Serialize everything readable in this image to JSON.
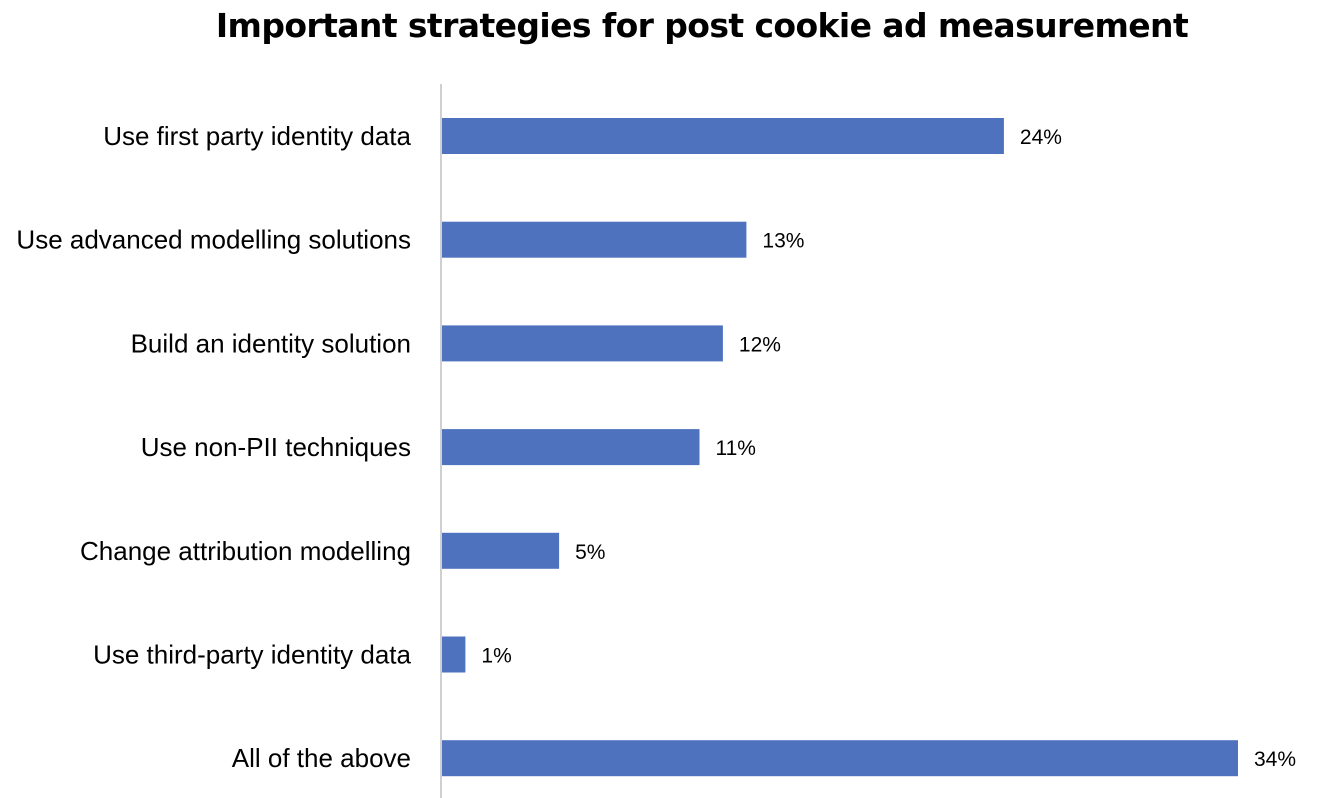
{
  "chart_data": {
    "type": "bar",
    "orientation": "horizontal",
    "title": "Important strategies for post cookie ad measurement",
    "categories": [
      "Use first party identity data",
      "Use advanced modelling solutions",
      "Build an identity solution",
      "Use non-PII techniques",
      "Change attribution modelling",
      "Use third-party identity data",
      "All of the above"
    ],
    "values": [
      24,
      13,
      12,
      11,
      5,
      1,
      34
    ],
    "value_labels": [
      "24%",
      "13%",
      "12%",
      "11%",
      "5%",
      "1%",
      "34%"
    ],
    "unit": "%",
    "xlim": [
      0,
      34
    ],
    "bar_color": "#4f72be",
    "grid": false,
    "legend": "none"
  }
}
